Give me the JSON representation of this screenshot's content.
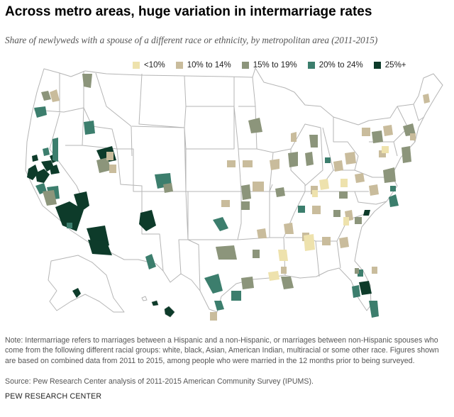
{
  "header": {
    "title": "Across metro areas, huge variation in intermarriage rates",
    "subtitle": "Share of newlyweds with a spouse of a different race or ethnicity, by metropolitan area (2011-2015)"
  },
  "legend": [
    {
      "label": "<10%",
      "color": "#eee2ad"
    },
    {
      "label": "10% to 14%",
      "color": "#c9bc9c"
    },
    {
      "label": "15% to 19%",
      "color": "#8c957b"
    },
    {
      "label": "20% to 24%",
      "color": "#3c7e6d"
    },
    {
      "label": "25%+",
      "color": "#0d3b2a"
    }
  ],
  "map": {
    "state_fill": "#ffffff",
    "border_color": "#b5b5b5"
  },
  "footer": {
    "note": "Note: Intermarriage refers to marriages between a Hispanic and a non-Hispanic, or marriages between non-Hispanic spouses who come from the following different racial groups: white, black, Asian, American Indian, multiracial or some other race. Figures shown are based on combined data from 2011 to 2015, among people who were married in the 12 months prior to being surveyed.",
    "source": "Source: Pew Research Center analysis of 2011-2015 American Community Survey (IPUMS).",
    "organization": "PEW RESEARCH CENTER"
  }
}
